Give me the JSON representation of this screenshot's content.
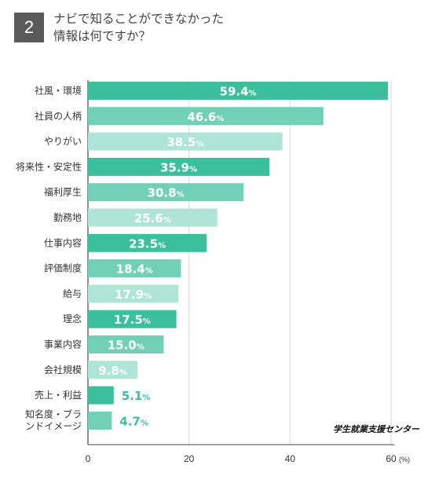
{
  "question_number": "2",
  "title_lines": [
    "ナビで知ることができなかった",
    "情報は何ですか？"
  ],
  "source": "学生就業支援センター",
  "colors": {
    "dark": "#3bbf9c",
    "medium": "#72d0b6",
    "light": "#aee5d5",
    "grid": "#d9d9d9",
    "axis": "#444444"
  },
  "chart_data": {
    "type": "bar",
    "orientation": "horizontal",
    "categories": [
      "社風・環境",
      "社員の人柄",
      "やりがい",
      "将来性・安定性",
      "福利厚生",
      "勤務地",
      "仕事内容",
      "評価制度",
      "給与",
      "理念",
      "事業内容",
      "会社規模",
      "売上・利益",
      "知名度・ブランドイメージ"
    ],
    "category_lines": [
      [
        "社風・環境"
      ],
      [
        "社員の人柄"
      ],
      [
        "やりがい"
      ],
      [
        "将来性・安定性"
      ],
      [
        "福利厚生"
      ],
      [
        "勤務地"
      ],
      [
        "仕事内容"
      ],
      [
        "評価制度"
      ],
      [
        "給与"
      ],
      [
        "理念"
      ],
      [
        "事業内容"
      ],
      [
        "会社規模"
      ],
      [
        "売上・利益"
      ],
      [
        "知名度・ブラ",
        "ンドイメージ"
      ]
    ],
    "values": [
      59.4,
      46.6,
      38.5,
      35.9,
      30.8,
      25.6,
      23.5,
      18.4,
      17.9,
      17.5,
      15.0,
      9.8,
      5.1,
      4.7
    ],
    "value_labels": [
      "59.4",
      "46.6",
      "38.5",
      "35.9",
      "30.8",
      "25.6",
      "23.5",
      "18.4",
      "17.9",
      "17.5",
      "15.0",
      "9.8",
      "5.1",
      "4.7"
    ],
    "value_suffix": "%",
    "shades": [
      "dark",
      "medium",
      "light",
      "dark",
      "medium",
      "light",
      "dark",
      "medium",
      "light",
      "dark",
      "medium",
      "light",
      "dark",
      "medium"
    ],
    "xlim": [
      0,
      60
    ],
    "xticks": [
      "0",
      "20",
      "40",
      "60"
    ],
    "x_unit": "(%)",
    "grid": true
  }
}
